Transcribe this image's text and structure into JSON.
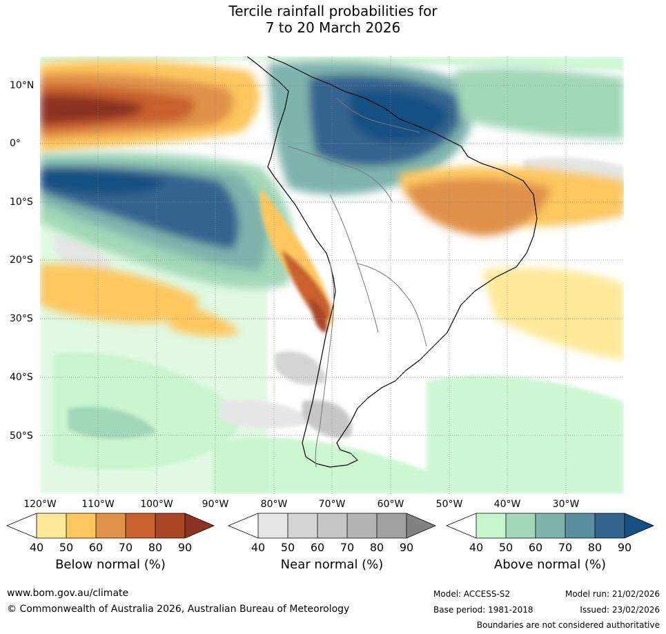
{
  "title": {
    "line1": "Tercile rainfall probabilities for",
    "line2": "7 to 20 March 2026"
  },
  "map": {
    "lon_labels": [
      "120°W",
      "110°W",
      "100°W",
      "90°W",
      "80°W",
      "70°W",
      "60°W",
      "50°W",
      "40°W",
      "30°W"
    ],
    "lat_labels": [
      "10°N",
      "0°",
      "10°S",
      "20°S",
      "30°S",
      "40°S",
      "50°S"
    ]
  },
  "colorbars": [
    {
      "title": "Below normal (%)",
      "ticks": [
        "40",
        "50",
        "60",
        "70",
        "80",
        "90"
      ],
      "colors": [
        "#ffffff",
        "#fee999",
        "#fdc65e",
        "#e0914a",
        "#c9602f",
        "#a94625",
        "#8c3320"
      ]
    },
    {
      "title": "Near normal (%)",
      "ticks": [
        "40",
        "50",
        "60",
        "70",
        "80",
        "90"
      ],
      "colors": [
        "#ffffff",
        "#e6e6e6",
        "#d4d4d4",
        "#c6c6c6",
        "#b4b4b4",
        "#a1a1a1",
        "#828282"
      ]
    },
    {
      "title": "Above normal (%)",
      "ticks": [
        "40",
        "50",
        "60",
        "70",
        "80",
        "90"
      ],
      "colors": [
        "#ffffff",
        "#c6f6cc",
        "#a3d7b9",
        "#7fb4ad",
        "#5a8fa0",
        "#35638f",
        "#174f82"
      ]
    }
  ],
  "footer": {
    "website": "www.bom.gov.au/climate",
    "copyright": "© Commonwealth of Australia 2026, Australian Bureau of Meteorology",
    "model": "Model: ACCESS-S2",
    "model_run": "Model run: 21/02/2026",
    "base_period": "Base period: 1981-2018",
    "issued": "Issued: 23/02/2026",
    "disclaimer": "Boundaries are not considered authoritative"
  }
}
